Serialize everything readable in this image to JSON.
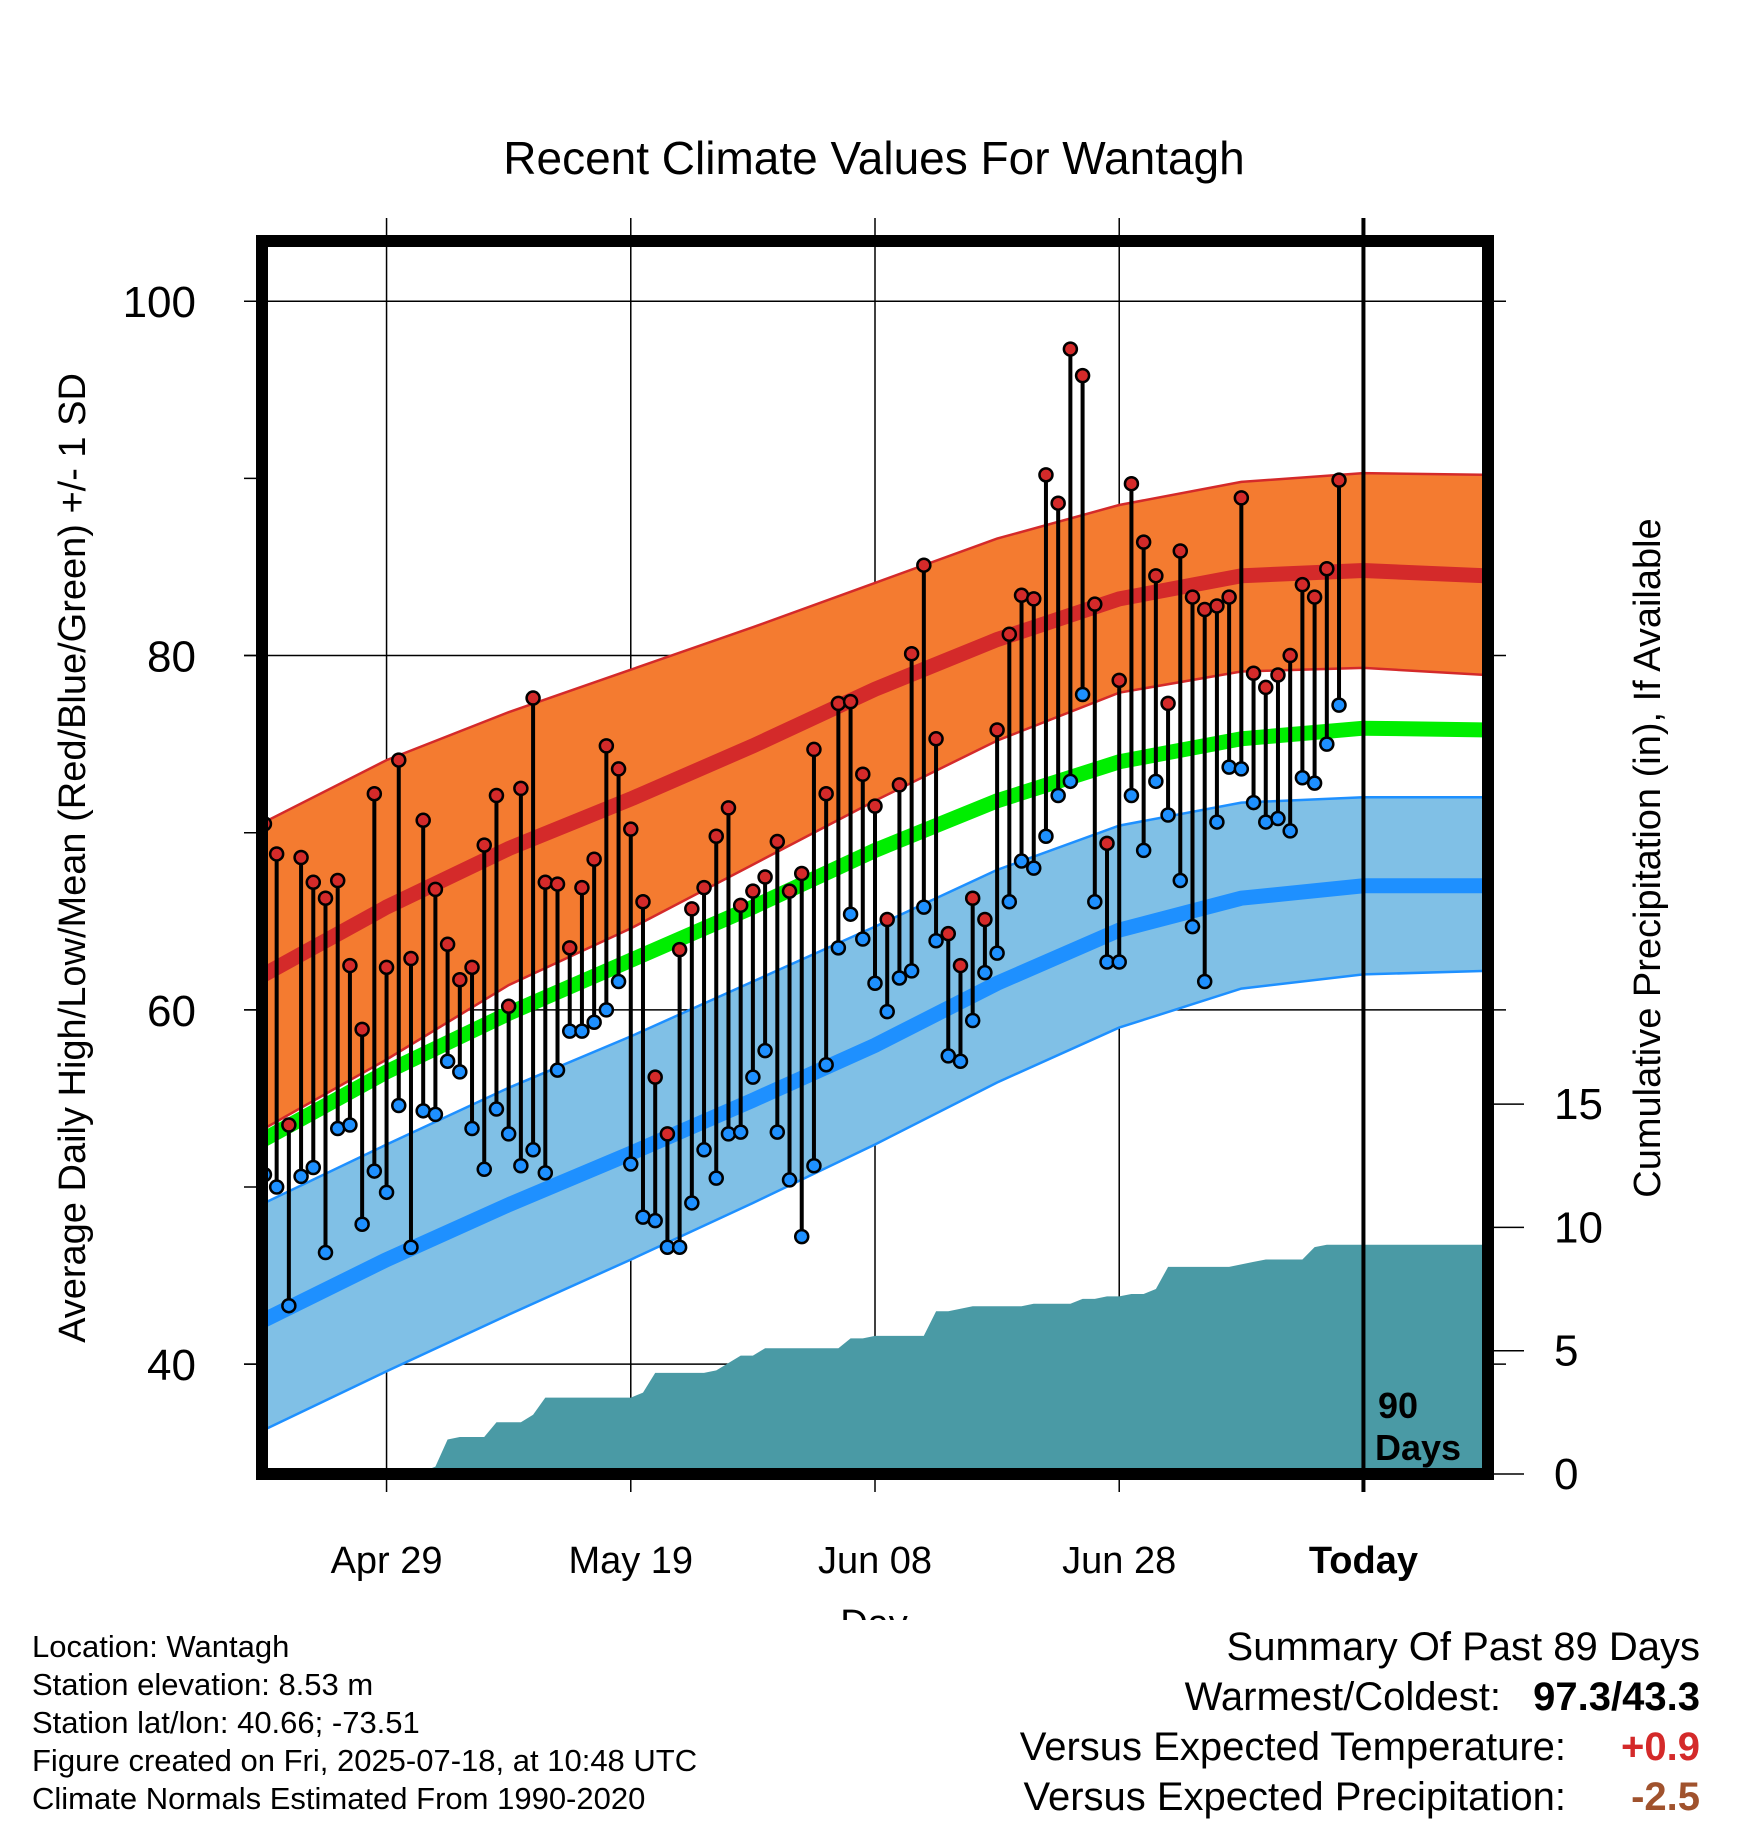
{
  "chart_data": {
    "type": "line",
    "title": "Recent Climate Values For Wantagh",
    "xlabel": "Day",
    "ylabel_left": "Average Daily High/Low/Mean (Red/Blue/Green) +/- 1 SD",
    "ylabel_right": "Cumulative Precipitation (in), If Available",
    "x_ticks": [
      {
        "day": 20,
        "label": "Apr 29"
      },
      {
        "day": 40,
        "label": "May 19"
      },
      {
        "day": 60,
        "label": "Jun 08"
      },
      {
        "day": 80,
        "label": "Jun 28"
      },
      {
        "day": 100,
        "label": "Today"
      }
    ],
    "y_ticks_left": [
      40,
      60,
      80,
      100
    ],
    "y_ticks_right": [
      0,
      5,
      10,
      15
    ],
    "ylim_left": [
      33.8,
      103.4
    ],
    "ylim_right": [
      0,
      50
    ],
    "xlim": [
      9.8,
      110.2
    ],
    "today_day": 100,
    "today_annotation": [
      "90",
      "Days"
    ],
    "grid": true,
    "colors": {
      "high_band": "#f47b30",
      "high_mean": "#d42a2a",
      "mean_line": "#00ee00",
      "low_band": "#80c0e6",
      "low_mean": "#1e90ff",
      "precip": "#4a9aa5",
      "high_marker": "#d42a2a",
      "low_marker": "#1e90ff",
      "positive": "#d42a2a",
      "negative": "#a0522d"
    },
    "normals": {
      "days": [
        10,
        20,
        30,
        40,
        50,
        60,
        70,
        80,
        90,
        100,
        110
      ],
      "high_mean": [
        62.0,
        65.8,
        69.1,
        71.9,
        74.9,
        78.1,
        80.9,
        83.2,
        84.5,
        84.8,
        84.5
      ],
      "high_upper": [
        70.6,
        74.1,
        76.8,
        79.2,
        81.6,
        84.1,
        86.6,
        88.5,
        89.8,
        90.3,
        90.2
      ],
      "high_lower": [
        53.3,
        57.2,
        61.4,
        64.6,
        68.2,
        71.8,
        75.2,
        77.9,
        79.1,
        79.3,
        78.9
      ],
      "mean": [
        52.7,
        56.5,
        59.8,
        62.8,
        65.8,
        69.0,
        71.8,
        74.0,
        75.3,
        75.9,
        75.8
      ],
      "low_mean": [
        42.5,
        45.9,
        49.0,
        51.9,
        54.9,
        58.0,
        61.5,
        64.5,
        66.3,
        67.0,
        67.0
      ],
      "low_upper": [
        49.1,
        52.4,
        55.6,
        58.5,
        61.6,
        64.7,
        67.9,
        70.4,
        71.7,
        72.0,
        72.0
      ],
      "low_lower": [
        36.3,
        39.6,
        42.8,
        45.9,
        49.1,
        52.4,
        55.9,
        59.0,
        61.2,
        62.0,
        62.2
      ]
    },
    "daily": {
      "start_day": 10,
      "high": [
        70.5,
        68.8,
        53.5,
        68.6,
        67.2,
        66.3,
        67.3,
        62.5,
        58.9,
        72.2,
        62.4,
        74.1,
        62.9,
        70.7,
        66.8,
        63.7,
        61.7,
        62.4,
        69.3,
        72.1,
        60.2,
        72.5,
        77.6,
        67.2,
        67.1,
        63.5,
        66.9,
        68.5,
        74.9,
        73.6,
        70.2,
        66.1,
        56.2,
        53.0,
        63.4,
        65.7,
        66.9,
        69.8,
        71.4,
        65.9,
        66.7,
        67.5,
        69.5,
        66.7,
        67.7,
        74.7,
        72.2,
        77.3,
        77.4,
        73.3,
        71.5,
        65.1,
        72.7,
        80.1,
        85.1,
        75.3,
        64.3,
        62.5,
        66.3,
        65.1,
        75.8,
        81.2,
        83.4,
        83.2,
        90.2,
        88.6,
        97.3,
        95.8,
        82.9,
        69.4,
        78.6,
        89.7,
        86.4,
        84.5,
        77.3,
        85.9,
        83.3,
        82.6,
        82.8,
        83.3,
        88.9,
        79.0,
        78.2,
        78.9,
        80.0,
        84.0,
        83.3,
        84.9,
        89.9
      ],
      "low": [
        50.7,
        50.0,
        43.3,
        50.6,
        51.1,
        46.3,
        53.3,
        53.5,
        47.9,
        50.9,
        49.7,
        54.6,
        46.6,
        54.3,
        54.1,
        57.1,
        56.5,
        53.3,
        51.0,
        54.4,
        53.0,
        51.2,
        52.1,
        50.8,
        56.6,
        58.8,
        58.8,
        59.3,
        60.0,
        61.6,
        51.3,
        48.3,
        48.1,
        46.6,
        46.6,
        49.1,
        52.1,
        50.5,
        53.0,
        53.1,
        56.2,
        57.7,
        53.1,
        50.4,
        47.2,
        51.2,
        56.9,
        63.5,
        65.4,
        64.0,
        61.5,
        59.9,
        61.8,
        62.2,
        65.8,
        63.9,
        57.4,
        57.1,
        59.4,
        62.1,
        63.2,
        66.1,
        68.4,
        68.0,
        69.8,
        72.1,
        72.9,
        77.8,
        66.1,
        62.7,
        62.7,
        72.1,
        69.0,
        72.9,
        71.0,
        67.3,
        64.7,
        61.6,
        70.6,
        73.7,
        73.6,
        71.7,
        70.6,
        70.8,
        70.1,
        73.1,
        72.8,
        75.0,
        77.2
      ]
    },
    "precip_cumulative": {
      "days": [
        10,
        22,
        23,
        24,
        25,
        26,
        27,
        28,
        29,
        30,
        31,
        32,
        33,
        34,
        35,
        36,
        37,
        38,
        39,
        40,
        41,
        42,
        43,
        44,
        45,
        46,
        47,
        48,
        49,
        50,
        51,
        52,
        53,
        54,
        55,
        56,
        57,
        58,
        59,
        60,
        61,
        62,
        63,
        64,
        65,
        66,
        67,
        68,
        69,
        70,
        71,
        72,
        73,
        74,
        75,
        76,
        77,
        78,
        79,
        80,
        81,
        82,
        83,
        84,
        85,
        86,
        87,
        88,
        89,
        90,
        91,
        92,
        93,
        94,
        95,
        96,
        97,
        98,
        99,
        100,
        110
      ],
      "values": [
        0,
        0,
        0.1,
        0.3,
        1.4,
        1.5,
        1.5,
        1.5,
        2.1,
        2.1,
        2.1,
        2.4,
        3.1,
        3.1,
        3.1,
        3.1,
        3.1,
        3.1,
        3.1,
        3.1,
        3.3,
        4.1,
        4.1,
        4.1,
        4.1,
        4.1,
        4.2,
        4.5,
        4.8,
        4.8,
        5.1,
        5.1,
        5.1,
        5.1,
        5.1,
        5.1,
        5.1,
        5.5,
        5.5,
        5.6,
        5.6,
        5.6,
        5.6,
        5.6,
        6.6,
        6.6,
        6.7,
        6.8,
        6.8,
        6.8,
        6.8,
        6.8,
        6.9,
        6.9,
        6.9,
        6.9,
        7.1,
        7.1,
        7.2,
        7.2,
        7.3,
        7.3,
        7.5,
        8.4,
        8.4,
        8.4,
        8.4,
        8.4,
        8.4,
        8.5,
        8.6,
        8.7,
        8.7,
        8.7,
        8.7,
        9.2,
        9.3,
        9.3,
        9.3,
        9.3,
        9.3
      ]
    }
  },
  "footer": {
    "location": "Location: Wantagh",
    "elevation": "Station elevation: 8.53 m",
    "latlon": "Station lat/lon: 40.66; -73.51",
    "created": "Figure created on Fri, 2025-07-18, at 10:48 UTC",
    "normals": "Climate Normals Estimated From 1990-2020"
  },
  "summary": {
    "title": "Summary Of Past 89 Days",
    "warmest_label": "Warmest/Coldest:",
    "warmest_value": "97.3/43.3",
    "temp_label": "Versus Expected Temperature:",
    "temp_value": "+0.9",
    "precip_label": "Versus Expected Precipitation:",
    "precip_value": "-2.5"
  }
}
